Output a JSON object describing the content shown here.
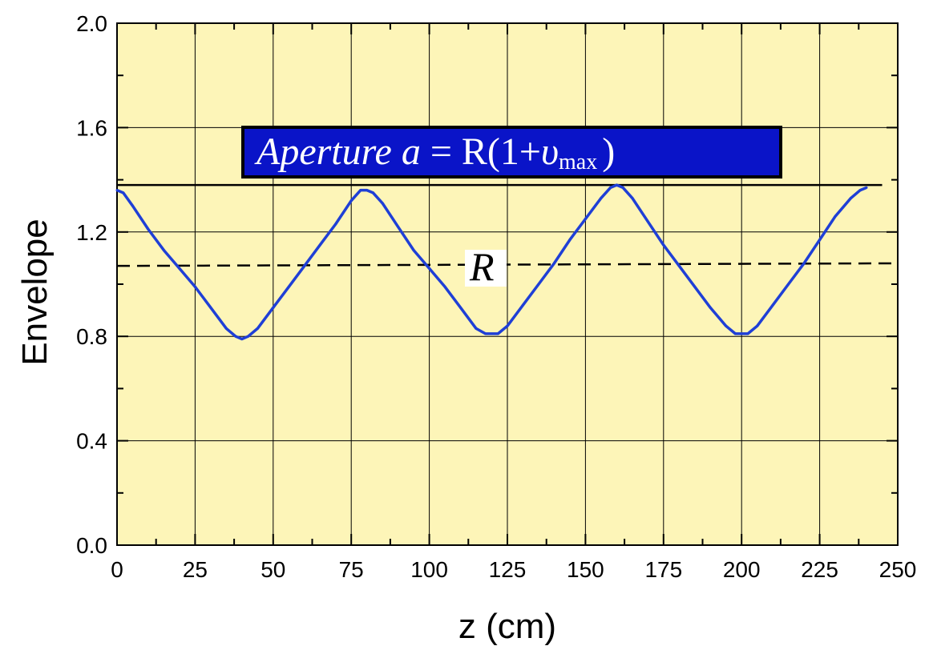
{
  "chart_data": {
    "type": "line",
    "xlabel": "z (cm)",
    "ylabel": "Envelope",
    "xlim": [
      0,
      250
    ],
    "ylim": [
      0,
      2.0
    ],
    "x_ticks": [
      0,
      25,
      50,
      75,
      100,
      125,
      150,
      175,
      200,
      225,
      250
    ],
    "x_tick_labels": [
      "0",
      "25",
      "50",
      "75",
      "100",
      "125",
      "150",
      "175",
      "200",
      "225",
      "250"
    ],
    "y_ticks": [
      0.0,
      0.4,
      0.8,
      1.2,
      1.6,
      2.0
    ],
    "y_tick_labels": [
      "0.0",
      "0.4",
      "0.8",
      "1.2",
      "1.6",
      "2.0"
    ],
    "grid": true,
    "colors": {
      "plot_background": "#FDF5B8",
      "envelope_line": "#1F3FD6",
      "grid": "#000000",
      "aperture_box": "#0A14C8"
    },
    "series": [
      {
        "x": [
          0,
          2,
          5,
          10,
          15,
          20,
          25,
          30,
          35,
          38,
          40,
          42,
          45,
          50,
          55,
          60,
          65,
          70,
          75,
          78,
          80,
          82,
          85,
          90,
          95,
          100,
          105,
          110,
          115,
          118,
          120,
          122,
          125,
          130,
          135,
          140,
          145,
          150,
          155,
          158,
          160,
          162,
          165,
          170,
          175,
          180,
          185,
          190,
          195,
          198,
          200,
          202,
          205,
          210,
          215,
          220,
          225,
          230,
          235,
          238,
          240
        ],
        "y": [
          1.36,
          1.35,
          1.3,
          1.21,
          1.13,
          1.06,
          0.99,
          0.91,
          0.83,
          0.8,
          0.79,
          0.8,
          0.83,
          0.91,
          0.99,
          1.07,
          1.15,
          1.23,
          1.32,
          1.36,
          1.36,
          1.35,
          1.31,
          1.22,
          1.13,
          1.06,
          0.99,
          0.91,
          0.83,
          0.81,
          0.81,
          0.81,
          0.84,
          0.92,
          1.0,
          1.08,
          1.17,
          1.25,
          1.33,
          1.37,
          1.38,
          1.37,
          1.33,
          1.24,
          1.15,
          1.07,
          0.99,
          0.91,
          0.84,
          0.81,
          0.81,
          0.81,
          0.84,
          0.92,
          1.0,
          1.08,
          1.17,
          1.26,
          1.33,
          1.36,
          1.37
        ]
      }
    ],
    "reference_lines": [
      {
        "label": "",
        "style": "solid",
        "y": [
          1.38,
          1.38
        ],
        "x": [
          0,
          245
        ]
      },
      {
        "label": "R",
        "style": "dashed",
        "y": [
          1.07,
          1.08
        ],
        "x": [
          0,
          250
        ]
      }
    ],
    "annotations": {
      "aperture_text_italic": "Aperture  a",
      "aperture_text_rest": " = R(1+",
      "aperture_upsilon": "υ",
      "aperture_subscript": "max",
      "aperture_close": ")",
      "r_label": "R"
    }
  }
}
